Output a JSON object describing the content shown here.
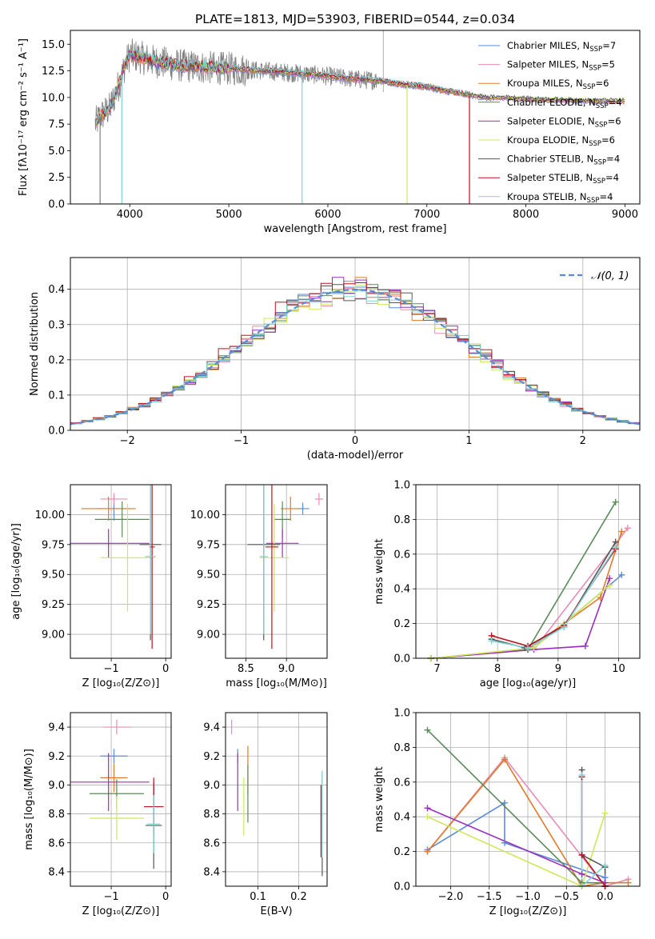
{
  "colors": {
    "Chabrier MILES": "#5b8bd6",
    "Salpeter MILES": "#e88cb5",
    "Kroupa MILES": "#e07b2a",
    "Chabrier ELODIE": "#5a8a5a",
    "Salpeter ELODIE": "#9b2fbd",
    "Kroupa ELODIE": "#cde85a",
    "Chabrier STELIB": "#555555",
    "Salpeter STELIB": "#c1121f",
    "Kroupa STELIB": "#7fd4d8"
  },
  "chart_data": [
    {
      "id": "spectrum",
      "type": "line",
      "title": "PLATE=1813, MJD=53903, FIBERID=0544, z=0.034",
      "xlabel": "wavelength [Angstrom, rest frame]",
      "ylabel": "Flux [fλ10⁻¹⁷ erg cm⁻² s⁻¹ A⁻¹]",
      "xlim": [
        3400,
        9150
      ],
      "ylim": [
        0,
        16.3
      ],
      "xticks": [
        4000,
        5000,
        6000,
        7000,
        8000,
        9000
      ],
      "yticks": [
        0.0,
        2.5,
        5.0,
        7.5,
        10.0,
        12.5,
        15.0
      ],
      "legend_position": "top-right",
      "legend": [
        {
          "name": "Chabrier MILES",
          "nssp": "7"
        },
        {
          "name": "Salpeter MILES",
          "nssp": "5"
        },
        {
          "name": "Kroupa MILES",
          "nssp": "6"
        },
        {
          "name": "Chabrier ELODIE",
          "nssp": "4"
        },
        {
          "name": "Salpeter ELODIE",
          "nssp": "6"
        },
        {
          "name": "Kroupa ELODIE",
          "nssp": "6"
        },
        {
          "name": "Chabrier STELIB",
          "nssp": "4"
        },
        {
          "name": "Salpeter STELIB",
          "nssp": "4"
        },
        {
          "name": "Kroupa STELIB",
          "nssp": "4"
        }
      ],
      "data_envelope": {
        "x": [
          3650,
          3700,
          3800,
          3900,
          3950,
          4000,
          4100,
          4200,
          4300,
          4500,
          4800,
          5000,
          5200,
          5500,
          5800,
          6000,
          6300,
          6500,
          6700,
          7000,
          7200,
          7400,
          7600,
          7800,
          8000,
          8300,
          8600,
          9000
        ],
        "y": [
          7.5,
          8.2,
          9.0,
          11.5,
          13.0,
          14.0,
          13.8,
          13.5,
          13.3,
          13.0,
          12.8,
          12.7,
          12.6,
          12.4,
          12.2,
          12.0,
          11.7,
          11.6,
          11.3,
          11.0,
          10.6,
          10.3,
          10.0,
          10.0,
          9.9,
          9.8,
          9.7,
          9.7
        ]
      },
      "absorption_dips": [
        {
          "x": 3700,
          "y": 0.0
        },
        {
          "x": 3920,
          "y": 0.0
        },
        {
          "x": 5740,
          "y": 0.0
        },
        {
          "x": 6800,
          "y": 0.0
        },
        {
          "x": 7430,
          "y": 0.0
        }
      ]
    },
    {
      "id": "residuals",
      "type": "histogram",
      "xlabel": "(data-model)/error",
      "ylabel": "Normed distribution",
      "xlim": [
        -2.5,
        2.5
      ],
      "ylim": [
        0,
        0.49
      ],
      "xticks": [
        -2,
        -1,
        0,
        1,
        2
      ],
      "yticks": [
        0.0,
        0.1,
        0.2,
        0.3,
        0.4
      ],
      "legend_position": "top-right",
      "legend_label": "𝒩(0, 1)",
      "bin_width": 0.1,
      "bin_start": -2.5,
      "jitter": [
        0.01,
        -0.02,
        0.03,
        -0.015,
        0.025,
        -0.03,
        0.015,
        0.035,
        -0.01
      ]
    },
    {
      "id": "age_vs_Z",
      "type": "errorbar",
      "xlabel": "Z [log₁₀(Z/Z⊙)]",
      "ylabel": "age  [log₁₀(age/yr)]",
      "xlim": [
        -1.75,
        0.1
      ],
      "ylim": [
        8.8,
        10.25
      ],
      "xticks": [
        -1,
        0
      ],
      "yticks": [
        9.0,
        9.25,
        9.5,
        9.75,
        10.0
      ],
      "points": [
        {
          "model": "Chabrier MILES",
          "x": -0.95,
          "xerr": 0.3,
          "y": 10.05,
          "yerr": 0.1
        },
        {
          "model": "Salpeter MILES",
          "x": -0.95,
          "xerr": 0.25,
          "y": 10.13,
          "yerr": 0.05
        },
        {
          "model": "Kroupa MILES",
          "x": -1.05,
          "xerr": 0.5,
          "y": 10.05,
          "yerr": 0.1
        },
        {
          "model": "Chabrier ELODIE",
          "x": -0.8,
          "xerr": 0.5,
          "y": 9.96,
          "yerr": 0.15
        },
        {
          "model": "Salpeter ELODIE",
          "x": -1.05,
          "xerr": 0.75,
          "y": 9.76,
          "yerr": 0.12
        },
        {
          "model": "Kroupa ELODIE",
          "x": -0.7,
          "xerr": 0.5,
          "y": 9.64,
          "yerr": 0.45
        },
        {
          "model": "Chabrier STELIB",
          "x": -0.28,
          "xerr": 0.2,
          "y": 9.75,
          "yerr": 0.8
        },
        {
          "model": "Salpeter STELIB",
          "x": -0.25,
          "xerr": 0.05,
          "y": 9.73,
          "yerr": 0.85
        },
        {
          "model": "Kroupa STELIB",
          "x": -0.28,
          "xerr": 0.1,
          "y": 9.65,
          "yerr": 0.65
        }
      ]
    },
    {
      "id": "age_vs_mass",
      "type": "errorbar",
      "xlabel": "mass [log₁₀(M/M⊙)]",
      "ylabel": "",
      "xlim": [
        8.25,
        9.5
      ],
      "ylim": [
        8.8,
        10.25
      ],
      "xticks": [
        8.5,
        9.0
      ],
      "yticks": [
        9.0,
        9.25,
        9.5,
        9.75,
        10.0
      ],
      "points": [
        {
          "model": "Chabrier MILES",
          "x": 9.2,
          "xerr": 0.08,
          "y": 10.05,
          "yerr": 0.05
        },
        {
          "model": "Salpeter MILES",
          "x": 9.4,
          "xerr": 0.05,
          "y": 10.13,
          "yerr": 0.05
        },
        {
          "model": "Kroupa MILES",
          "x": 9.05,
          "xerr": 0.12,
          "y": 10.05,
          "yerr": 0.1
        },
        {
          "model": "Chabrier ELODIE",
          "x": 8.95,
          "xerr": 0.1,
          "y": 9.96,
          "yerr": 0.15
        },
        {
          "model": "Salpeter ELODIE",
          "x": 8.95,
          "xerr": 0.2,
          "y": 9.76,
          "yerr": 0.12
        },
        {
          "model": "Kroupa ELODIE",
          "x": 8.85,
          "xerr": 0.18,
          "y": 9.64,
          "yerr": 0.45
        },
        {
          "model": "Chabrier STELIB",
          "x": 8.72,
          "xerr": 0.2,
          "y": 9.75,
          "yerr": 0.8
        },
        {
          "model": "Salpeter STELIB",
          "x": 8.82,
          "xerr": 0.08,
          "y": 9.73,
          "yerr": 0.85
        },
        {
          "model": "Kroupa STELIB",
          "x": 8.72,
          "xerr": 0.05,
          "y": 9.65,
          "yerr": 0.65
        }
      ]
    },
    {
      "id": "massweight_vs_age",
      "type": "line",
      "xlabel": "age  [log₁₀(age/yr)]",
      "ylabel": "mass weight",
      "xlim": [
        6.65,
        10.35
      ],
      "ylim": [
        0,
        1.0
      ],
      "xticks": [
        7,
        8,
        9,
        10
      ],
      "yticks": [
        0.0,
        0.2,
        0.4,
        0.6,
        0.8,
        1.0
      ],
      "series": [
        {
          "model": "Chabrier MILES",
          "x": [
            6.9,
            8.5,
            9.1,
            10.05
          ],
          "y": [
            0.0,
            0.05,
            0.2,
            0.48
          ]
        },
        {
          "model": "Salpeter MILES",
          "x": [
            6.9,
            8.6,
            10.15
          ],
          "y": [
            0.0,
            0.05,
            0.75
          ]
        },
        {
          "model": "Kroupa MILES",
          "x": [
            6.9,
            8.5,
            9.7,
            10.05
          ],
          "y": [
            0.0,
            0.05,
            0.35,
            0.73
          ]
        },
        {
          "model": "Chabrier ELODIE",
          "x": [
            6.9,
            8.5,
            9.95
          ],
          "y": [
            0.0,
            0.05,
            0.9
          ]
        },
        {
          "model": "Salpeter ELODIE",
          "x": [
            6.9,
            8.6,
            9.45,
            9.85
          ],
          "y": [
            0.0,
            0.05,
            0.07,
            0.46
          ]
        },
        {
          "model": "Kroupa ELODIE",
          "x": [
            6.9,
            8.6,
            9.1,
            9.85
          ],
          "y": [
            0.0,
            0.06,
            0.2,
            0.42
          ]
        },
        {
          "model": "Chabrier STELIB",
          "x": [
            7.9,
            8.45,
            9.1,
            9.95
          ],
          "y": [
            0.11,
            0.06,
            0.18,
            0.67
          ]
        },
        {
          "model": "Salpeter STELIB",
          "x": [
            7.9,
            8.5,
            9.1,
            9.95
          ],
          "y": [
            0.13,
            0.07,
            0.19,
            0.63
          ]
        },
        {
          "model": "Kroupa STELIB",
          "x": [
            7.9,
            8.5,
            9.1,
            9.95
          ],
          "y": [
            0.1,
            0.06,
            0.18,
            0.64
          ]
        }
      ]
    },
    {
      "id": "mass_vs_Z",
      "type": "errorbar",
      "xlabel": "Z [log₁₀(Z/Z⊙)]",
      "ylabel": "mass [log₁₀(M/M⊙)]",
      "xlim": [
        -1.75,
        0.1
      ],
      "ylim": [
        8.3,
        9.5
      ],
      "xticks": [
        -1,
        0
      ],
      "yticks": [
        8.4,
        8.6,
        8.8,
        9.0,
        9.2,
        9.4
      ],
      "points": [
        {
          "model": "Chabrier MILES",
          "x": -0.95,
          "xerr": 0.25,
          "y": 9.2,
          "yerr": 0.05
        },
        {
          "model": "Salpeter MILES",
          "x": -0.9,
          "xerr": 0.25,
          "y": 9.4,
          "yerr": 0.05
        },
        {
          "model": "Kroupa MILES",
          "x": -0.95,
          "xerr": 0.25,
          "y": 9.05,
          "yerr": 0.1
        },
        {
          "model": "Chabrier ELODIE",
          "x": -0.9,
          "xerr": 0.5,
          "y": 8.94,
          "yerr": 0.1
        },
        {
          "model": "Salpeter ELODIE",
          "x": -1.05,
          "xerr": 0.75,
          "y": 9.02,
          "yerr": 0.2
        },
        {
          "model": "Kroupa ELODIE",
          "x": -0.9,
          "xerr": 0.5,
          "y": 8.77,
          "yerr": 0.15
        },
        {
          "model": "Chabrier STELIB",
          "x": -0.22,
          "xerr": 0.15,
          "y": 8.72,
          "yerr": 0.3
        },
        {
          "model": "Salpeter STELIB",
          "x": -0.22,
          "xerr": 0.18,
          "y": 8.85,
          "yerr": 0.2
        },
        {
          "model": "Kroupa STELIB",
          "x": -0.22,
          "xerr": 0.12,
          "y": 8.73,
          "yerr": 0.2
        }
      ]
    },
    {
      "id": "mass_vs_ebv",
      "type": "errorbar",
      "xlabel": "E(B-V)",
      "ylabel": "",
      "xlim": [
        0.02,
        0.27
      ],
      "ylim": [
        8.3,
        9.5
      ],
      "xticks": [
        0.0,
        0.1,
        0.2
      ],
      "yticks": [
        8.4,
        8.6,
        8.8,
        9.0,
        9.2,
        9.4
      ],
      "points": [
        {
          "model": "Chabrier MILES",
          "x": 0.05,
          "xerr": 0.0,
          "y": 9.2,
          "yerr": 0.05
        },
        {
          "model": "Salpeter MILES",
          "x": 0.035,
          "xerr": 0.0,
          "y": 9.4,
          "yerr": 0.05
        },
        {
          "model": "Kroupa MILES",
          "x": 0.075,
          "xerr": 0.0,
          "y": 9.1,
          "yerr": 0.17
        },
        {
          "model": "Chabrier ELODIE",
          "x": 0.075,
          "xerr": 0.0,
          "y": 8.94,
          "yerr": 0.2
        },
        {
          "model": "Salpeter ELODIE",
          "x": 0.05,
          "xerr": 0.0,
          "y": 9.02,
          "yerr": 0.2
        },
        {
          "model": "Kroupa ELODIE",
          "x": 0.065,
          "xerr": 0.0,
          "y": 8.85,
          "yerr": 0.2
        },
        {
          "model": "Chabrier STELIB",
          "x": 0.258,
          "xerr": 0.0,
          "y": 8.72,
          "yerr": 0.35
        },
        {
          "model": "Salpeter STELIB",
          "x": 0.255,
          "xerr": 0.0,
          "y": 8.75,
          "yerr": 0.25
        },
        {
          "model": "Kroupa STELIB",
          "x": 0.258,
          "xerr": 0.0,
          "y": 8.8,
          "yerr": 0.3
        }
      ]
    },
    {
      "id": "massweight_vs_Z",
      "type": "line",
      "xlabel": "Z [log₁₀(Z/Z⊙)]",
      "ylabel": "mass weight",
      "xlim": [
        -2.45,
        0.45
      ],
      "ylim": [
        0,
        1.0
      ],
      "xticks": [
        -2.0,
        -1.5,
        -1.0,
        -0.5,
        0.0
      ],
      "yticks": [
        0.0,
        0.2,
        0.4,
        0.6,
        0.8,
        1.0
      ],
      "series": [
        {
          "model": "Chabrier MILES",
          "x": [
            -2.3,
            -1.3,
            -1.3,
            0.0,
            0.0
          ],
          "y": [
            0.21,
            0.48,
            0.25,
            0.05,
            0.0
          ]
        },
        {
          "model": "Salpeter MILES",
          "x": [
            -2.3,
            -1.3,
            0.0,
            0.3
          ],
          "y": [
            0.2,
            0.74,
            0.0,
            0.04
          ]
        },
        {
          "model": "Kroupa MILES",
          "x": [
            -2.3,
            -1.3,
            -0.3,
            0.0,
            0.3
          ],
          "y": [
            0.2,
            0.73,
            0.0,
            0.02,
            0.02
          ]
        },
        {
          "model": "Chabrier ELODIE",
          "x": [
            -2.3,
            -0.3,
            0.0
          ],
          "y": [
            0.9,
            0.02,
            0.02
          ]
        },
        {
          "model": "Salpeter ELODIE",
          "x": [
            -2.3,
            -0.3,
            0.0
          ],
          "y": [
            0.45,
            0.07,
            0.02
          ]
        },
        {
          "model": "Kroupa ELODIE",
          "x": [
            -2.3,
            -0.3,
            0.0
          ],
          "y": [
            0.4,
            0.0,
            0.42
          ]
        },
        {
          "model": "Chabrier STELIB",
          "x": [
            -0.3,
            -0.3,
            0.0,
            0.0
          ],
          "y": [
            0.67,
            0.18,
            0.11,
            0.0
          ]
        },
        {
          "model": "Salpeter STELIB",
          "x": [
            -0.3,
            -0.3,
            0.0
          ],
          "y": [
            0.63,
            0.18,
            0.0
          ]
        },
        {
          "model": "Kroupa STELIB",
          "x": [
            -0.3,
            -0.3,
            0.0
          ],
          "y": [
            0.64,
            0.0,
            0.12
          ]
        }
      ]
    }
  ]
}
